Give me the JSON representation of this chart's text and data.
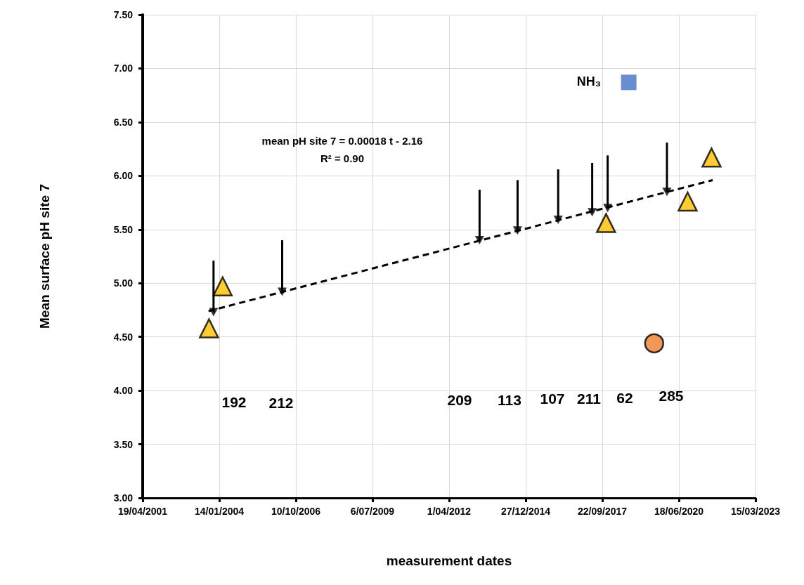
{
  "chart_data": {
    "type": "scatter",
    "xlabel": "measurement dates",
    "ylabel": "Mean surface pH site 7",
    "xlim": [
      "2001-04-19",
      "2023-03-15"
    ],
    "xticks": [
      {
        "value": "2001-04-19",
        "label": "19/04/2001"
      },
      {
        "value": "2004-01-14",
        "label": "14/01/2004"
      },
      {
        "value": "2006-10-10",
        "label": "10/10/2006"
      },
      {
        "value": "2009-07-06",
        "label": "6/07/2009"
      },
      {
        "value": "2012-04-01",
        "label": "1/04/2012"
      },
      {
        "value": "2014-12-27",
        "label": "27/12/2014"
      },
      {
        "value": "2017-09-22",
        "label": "22/09/2017"
      },
      {
        "value": "2020-06-18",
        "label": "18/06/2020"
      },
      {
        "value": "2023-03-15",
        "label": "15/03/2023"
      }
    ],
    "ylim": [
      3,
      7.5
    ],
    "yticks": [
      {
        "value": 3,
        "label": "3.00"
      },
      {
        "value": 3.5,
        "label": "3.50"
      },
      {
        "value": 4,
        "label": "4.00"
      },
      {
        "value": 4.5,
        "label": "4.50"
      },
      {
        "value": 5,
        "label": "5.00"
      },
      {
        "value": 5.5,
        "label": "5.50"
      },
      {
        "value": 6,
        "label": "6.00"
      },
      {
        "value": 6.5,
        "label": "6.50"
      },
      {
        "value": 7,
        "label": "7.00"
      },
      {
        "value": 7.5,
        "label": "7.50"
      }
    ],
    "grid": true,
    "series": [
      {
        "type": "line",
        "color": "#000000",
        "marker": "none",
        "line_style": "dashed",
        "x": [
          "2003-08-27",
          "2021-09-02"
        ],
        "values": [
          4.74,
          5.96
        ]
      },
      {
        "color": "#000000",
        "marker": "triangle",
        "x": [
          "2003-10-31",
          "2006-04-14",
          "2013-05-04",
          "2014-09-12",
          "2016-02-24",
          "2017-05-13",
          "2017-12-01",
          "2020-01-14"
        ],
        "values": [
          4.73,
          4.92,
          5.4,
          5.49,
          5.59,
          5.66,
          5.7,
          5.85
        ],
        "errors": [
          [
            4.73,
            5.21
          ],
          [
            4.92,
            5.4
          ],
          [
            5.4,
            5.87
          ],
          [
            5.49,
            5.96
          ],
          [
            5.59,
            6.06
          ],
          [
            5.66,
            6.12
          ],
          [
            5.7,
            6.19
          ],
          [
            5.85,
            6.31
          ]
        ]
      },
      {
        "color": "#ffc000",
        "marker": "triangle",
        "x": [
          "2003-09-02",
          "2004-02-27",
          "2017-11-10",
          "2020-10-10",
          "2021-08-18"
        ],
        "values": [
          4.58,
          4.97,
          5.56,
          5.76,
          6.17
        ]
      },
      {
        "color": "#ed7d31",
        "marker": "circle",
        "x": [
          "2019-07-31"
        ],
        "values": [
          4.44
        ]
      },
      {
        "color": "#4472c4",
        "marker": "square",
        "x": [
          "2018-09-02"
        ],
        "values": [
          6.87
        ]
      }
    ],
    "annotations": [
      "mean pH site 7 = 0.00018 t - 2.16",
      "R² = 0.90",
      "NH₃",
      "192",
      "212",
      "209",
      "113",
      "107",
      "211",
      "62",
      "285"
    ]
  }
}
